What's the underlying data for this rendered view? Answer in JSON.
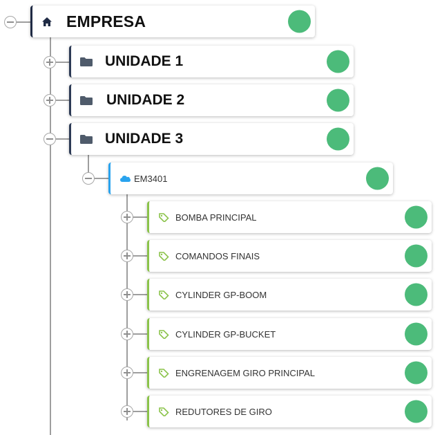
{
  "tree": {
    "root": {
      "label": "EMPRESA",
      "icon": "home-icon",
      "expanded": true,
      "status_color": "#4cbb7a"
    },
    "units": [
      {
        "label": "UNIDADE 1",
        "icon": "folder-icon",
        "expanded": false,
        "status_color": "#4cbb7a"
      },
      {
        "label": "UNIDADE 2",
        "icon": "folder-icon",
        "expanded": false,
        "status_color": "#4cbb7a"
      },
      {
        "label": "UNIDADE 3",
        "icon": "folder-icon",
        "expanded": true,
        "status_color": "#4cbb7a"
      }
    ],
    "equipment": {
      "label": "EM3401",
      "icon": "cloud-icon",
      "expanded": true,
      "status_color": "#4cbb7a"
    },
    "components": [
      {
        "label": "BOMBA PRINCIPAL",
        "icon": "tag-icon",
        "expanded": false,
        "status_color": "#4cbb7a"
      },
      {
        "label": "COMANDOS FINAIS",
        "icon": "tag-icon",
        "expanded": false,
        "status_color": "#4cbb7a"
      },
      {
        "label": "CYLINDER GP-BOOM",
        "icon": "tag-icon",
        "expanded": false,
        "status_color": "#4cbb7a"
      },
      {
        "label": "CYLINDER GP-BUCKET",
        "icon": "tag-icon",
        "expanded": false,
        "status_color": "#4cbb7a"
      },
      {
        "label": "ENGRENAGEM GIRO PRINCIPAL",
        "icon": "tag-icon",
        "expanded": false,
        "status_color": "#4cbb7a"
      },
      {
        "label": "REDUTORES DE GIRO",
        "icon": "tag-icon",
        "expanded": false,
        "status_color": "#4cbb7a"
      }
    ]
  },
  "colors": {
    "root_accent": "#1f2a44",
    "unit_accent": "#2c3a55",
    "equipment_accent": "#29a3ee",
    "component_accent": "#8bc34a",
    "status_ok": "#4cbb7a",
    "connector": "#9e9e9e"
  }
}
